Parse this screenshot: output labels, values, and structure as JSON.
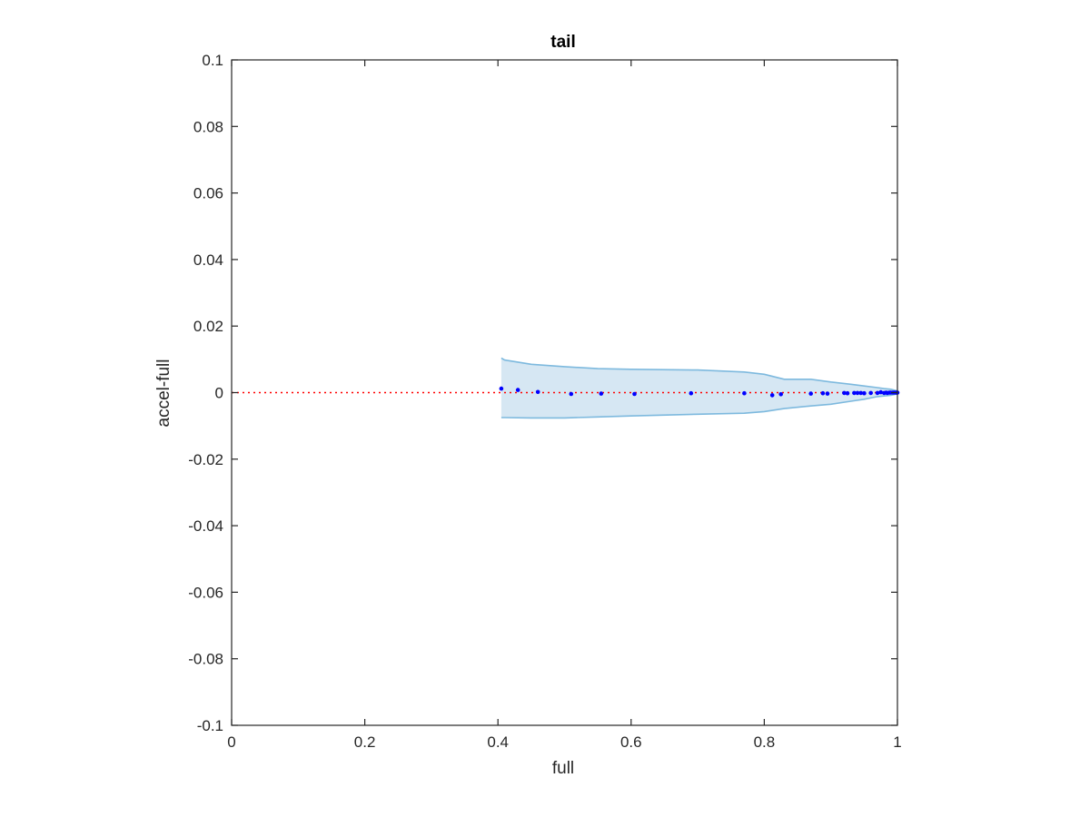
{
  "chart_data": {
    "type": "scatter",
    "title": "tail",
    "xlabel": "full",
    "ylabel": "accel-full",
    "xlim": [
      0,
      1
    ],
    "ylim": [
      -0.1,
      0.1
    ],
    "x_ticks": [
      0,
      0.2,
      0.4,
      0.6,
      0.8,
      1
    ],
    "x_tick_labels": [
      "0",
      "0.2",
      "0.4",
      "0.6",
      "0.8",
      "1"
    ],
    "y_ticks": [
      -0.1,
      -0.08,
      -0.06,
      -0.04,
      -0.02,
      0,
      0.02,
      0.04,
      0.06,
      0.08,
      0.1
    ],
    "y_tick_labels": [
      "-0.1",
      "-0.08",
      "-0.06",
      "-0.04",
      "-0.02",
      "0",
      "0.02",
      "0.04",
      "0.06",
      "0.08",
      "0.1"
    ],
    "grid": false,
    "colors": {
      "points": "#0000ff",
      "band_fill": "#d6e7f3",
      "band_edge": "#7db9de",
      "reference_line": "#ff0000",
      "axes": "#262626"
    },
    "reference_line": {
      "y": 0,
      "style": "dotted"
    },
    "band": {
      "x": [
        0.405,
        0.41,
        0.45,
        0.5,
        0.55,
        0.6,
        0.7,
        0.77,
        0.8,
        0.83,
        0.87,
        0.9,
        0.93,
        0.95,
        0.97,
        0.98,
        0.99,
        1.0
      ],
      "upper": [
        0.0104,
        0.0098,
        0.0085,
        0.0078,
        0.0072,
        0.007,
        0.0068,
        0.0062,
        0.0055,
        0.004,
        0.004,
        0.0032,
        0.0025,
        0.002,
        0.0015,
        0.0012,
        0.001,
        0.0005
      ],
      "lower": [
        -0.0075,
        -0.0075,
        -0.0076,
        -0.0076,
        -0.0073,
        -0.007,
        -0.0065,
        -0.0062,
        -0.0057,
        -0.0048,
        -0.004,
        -0.0035,
        -0.0026,
        -0.002,
        -0.0012,
        -0.001,
        -0.0008,
        -0.0004
      ]
    },
    "series": [
      {
        "x": [
          0.405,
          0.43,
          0.46,
          0.51,
          0.555,
          0.605,
          0.69,
          0.77,
          0.812,
          0.825,
          0.87,
          0.888,
          0.895,
          0.92,
          0.925,
          0.935,
          0.94,
          0.945,
          0.95,
          0.96,
          0.97,
          0.975,
          0.98,
          0.983,
          0.985,
          0.988,
          0.99,
          0.993,
          0.995,
          0.997,
          0.999,
          1.0
        ],
        "y": [
          0.0012,
          0.0008,
          0.0002,
          -0.0004,
          -0.0003,
          -0.0004,
          -0.0002,
          -0.0002,
          -0.0008,
          -0.0005,
          -0.0003,
          -0.0002,
          -0.0003,
          -0.0001,
          -0.0002,
          -0.0001,
          -0.0001,
          -0.0001,
          -0.0002,
          -0.0001,
          -0.0001,
          0.0001,
          -0.0001,
          0.0,
          -0.0001,
          0.0,
          0.0,
          0.0,
          0.0,
          0.0,
          0.0,
          0.0
        ]
      }
    ]
  }
}
